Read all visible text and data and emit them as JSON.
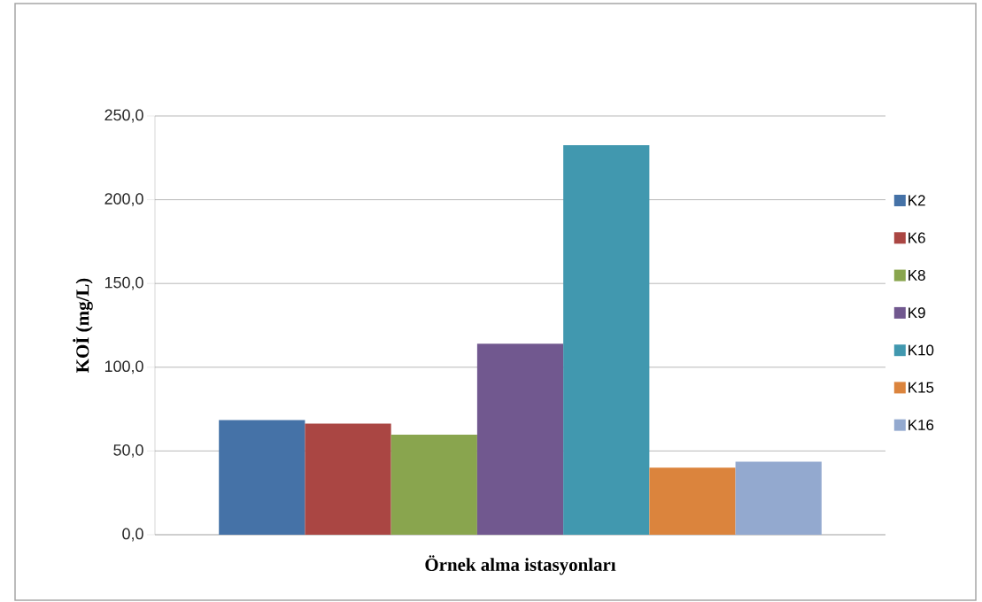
{
  "chart_data": {
    "type": "bar",
    "xlabel": "Örnek alma istasyonları",
    "ylabel": "KOİ (mg/L)",
    "categories": [
      null
    ],
    "series": [
      {
        "name": "K2",
        "color": "#4572a7",
        "values": [
          68.4
        ]
      },
      {
        "name": "K6",
        "color": "#aa4643",
        "values": [
          66.3
        ]
      },
      {
        "name": "K8",
        "color": "#89a54e",
        "values": [
          59.7
        ]
      },
      {
        "name": "K9",
        "color": "#71588f",
        "values": [
          114.0
        ]
      },
      {
        "name": "K10",
        "color": "#4198af",
        "values": [
          232.6
        ]
      },
      {
        "name": "K15",
        "color": "#db843d",
        "values": [
          40.1
        ]
      },
      {
        "name": "K16",
        "color": "#93a9cf",
        "values": [
          43.6
        ]
      }
    ],
    "ylim": [
      0,
      250
    ],
    "yticks": [
      {
        "value": 0,
        "label": "0,0"
      },
      {
        "value": 50,
        "label": "50,0"
      },
      {
        "value": 100,
        "label": "100,0"
      },
      {
        "value": 150,
        "label": "150,0"
      },
      {
        "value": 200,
        "label": "200,0"
      },
      {
        "value": 250,
        "label": "250,0"
      }
    ],
    "grid": "y",
    "legend": "right"
  }
}
